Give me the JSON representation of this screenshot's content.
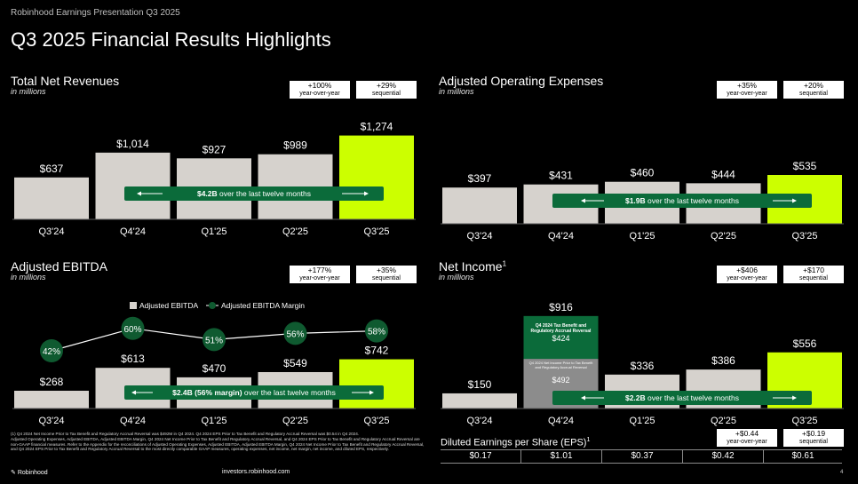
{
  "header": {
    "top_label": "Robinhood Earnings Presentation Q3 2025",
    "title": "Q3 2025 Financial Results Highlights"
  },
  "colors": {
    "bar_gray": "#d6d2cd",
    "highlight": "#ccff00",
    "banner_green": "#0b6b3a",
    "marker_green": "#0f5a30"
  },
  "panels": {
    "revenue": {
      "title": "Total Net Revenues",
      "subtitle": "in millions",
      "badge1_value": "+100%",
      "badge1_label": "year-over-year",
      "badge2_value": "+29%",
      "badge2_label": "sequential",
      "banner_bold": "$4.2B",
      "banner_rest": " over the last twelve months"
    },
    "opex": {
      "title": "Adjusted Operating Expenses",
      "subtitle": "in millions",
      "badge1_value": "+35%",
      "badge1_label": "year-over-year",
      "badge2_value": "+20%",
      "badge2_label": "sequential",
      "banner_bold": "$1.9B",
      "banner_rest": " over the last twelve months"
    },
    "ebitda": {
      "title": "Adjusted EBITDA",
      "subtitle": "in millions",
      "badge1_value": "+177%",
      "badge1_label": "year-over-year",
      "badge2_value": "+35%",
      "badge2_label": "sequential",
      "legend_bar": "Adjusted EBITDA",
      "legend_line": "Adjusted EBITDA Margin",
      "banner_bold": "$2.4B (56% margin)",
      "banner_rest": " over the last twelve months"
    },
    "netincome": {
      "title": "Net Income",
      "title_sup": "1",
      "subtitle": "in millions",
      "badge1_value": "+$406",
      "badge1_label": "year-over-year",
      "badge2_value": "+$170",
      "badge2_label": "sequential",
      "q4_top_note": "Q4 2024 Tax Benefit and Regulatory Accrual Reversal",
      "q4_top_value": "$424",
      "q4_bottom_note": "Q4 2024 Net Income Prior to Tax Benefit and Regulatory Accrual Reversal",
      "q4_bottom_value": "$492",
      "banner_bold": "$2.2B",
      "banner_rest": " over the last twelve months"
    }
  },
  "eps": {
    "title": "Diluted Earnings per Share (EPS)",
    "title_sup": "1",
    "badge1_value": "+$0.44",
    "badge1_label": "year-over-year",
    "badge2_value": "+$0.19",
    "badge2_label": "sequential",
    "values": [
      "$0.17",
      "$1.01",
      "$0.37",
      "$0.42",
      "$0.61"
    ]
  },
  "chart_data": [
    {
      "type": "bar",
      "title": "Total Net Revenues",
      "ylabel": "in millions",
      "categories": [
        "Q3'24",
        "Q4'24",
        "Q1'25",
        "Q2'25",
        "Q3'25"
      ],
      "values": [
        637,
        1014,
        927,
        989,
        1274
      ],
      "labels": [
        "$637",
        "$1,014",
        "$927",
        "$989",
        "$1,274"
      ],
      "highlight_index": 4
    },
    {
      "type": "bar",
      "title": "Adjusted Operating Expenses",
      "ylabel": "in millions",
      "categories": [
        "Q3'24",
        "Q4'24",
        "Q1'25",
        "Q2'25",
        "Q3'25"
      ],
      "values": [
        397,
        431,
        460,
        444,
        535
      ],
      "labels": [
        "$397",
        "$431",
        "$460",
        "$444",
        "$535"
      ],
      "highlight_index": 4
    },
    {
      "type": "bar",
      "title": "Adjusted EBITDA",
      "ylabel": "in millions",
      "categories": [
        "Q3'24",
        "Q4'24",
        "Q1'25",
        "Q2'25",
        "Q3'25"
      ],
      "values": [
        268,
        613,
        470,
        549,
        742
      ],
      "labels": [
        "$268",
        "$613",
        "$470",
        "$549",
        "$742"
      ],
      "highlight_index": 4,
      "series": [
        {
          "name": "Adjusted EBITDA Margin",
          "values": [
            42,
            60,
            51,
            56,
            58
          ],
          "labels": [
            "42%",
            "60%",
            "51%",
            "56%",
            "58%"
          ]
        }
      ]
    },
    {
      "type": "bar",
      "title": "Net Income",
      "ylabel": "in millions",
      "categories": [
        "Q3'24",
        "Q4'24",
        "Q1'25",
        "Q2'25",
        "Q3'25"
      ],
      "values": [
        150,
        916,
        336,
        386,
        556
      ],
      "labels": [
        "$150",
        "$916",
        "$336",
        "$386",
        "$556"
      ],
      "highlight_index": 4
    }
  ],
  "footer": {
    "note1": "(1) Q4 2024 Net Income Prior to Tax Benefit and Regulatory Accrual Reversal was $492M in Q4 2024. Q4 2024 EPS Prior to Tax Benefit and Regulatory Accrual Reversal was $0.54 in Q4 2024.",
    "note2": "Adjusted Operating Expenses, Adjusted EBITDA, Adjusted EBITDA Margin, Q4 2024 Net Income Prior to Tax Benefit and Regulatory Accrual Reversal, and Q4 2024 EPS Prior to Tax Benefit and Regulatory Accrual Reversal are non-GAAP financial measures. Refer to the Appendix for the reconciliations of Adjusted Operating Expenses, Adjusted EBITDA, Adjusted EBITDA Margin, Q4 2024 Net Income Prior to Tax Benefit and Regulatory Accrual Reversal, and Q4 2024 EPS Prior to Tax Benefit and Regulatory Accrual Reversal to the most directly comparable GAAP measures, operating expenses, net income, net margin, net income, and diluted EPS, respectively.",
    "brand": "Robinhood",
    "website": "investors.robinhood.com",
    "page_number": "4"
  }
}
